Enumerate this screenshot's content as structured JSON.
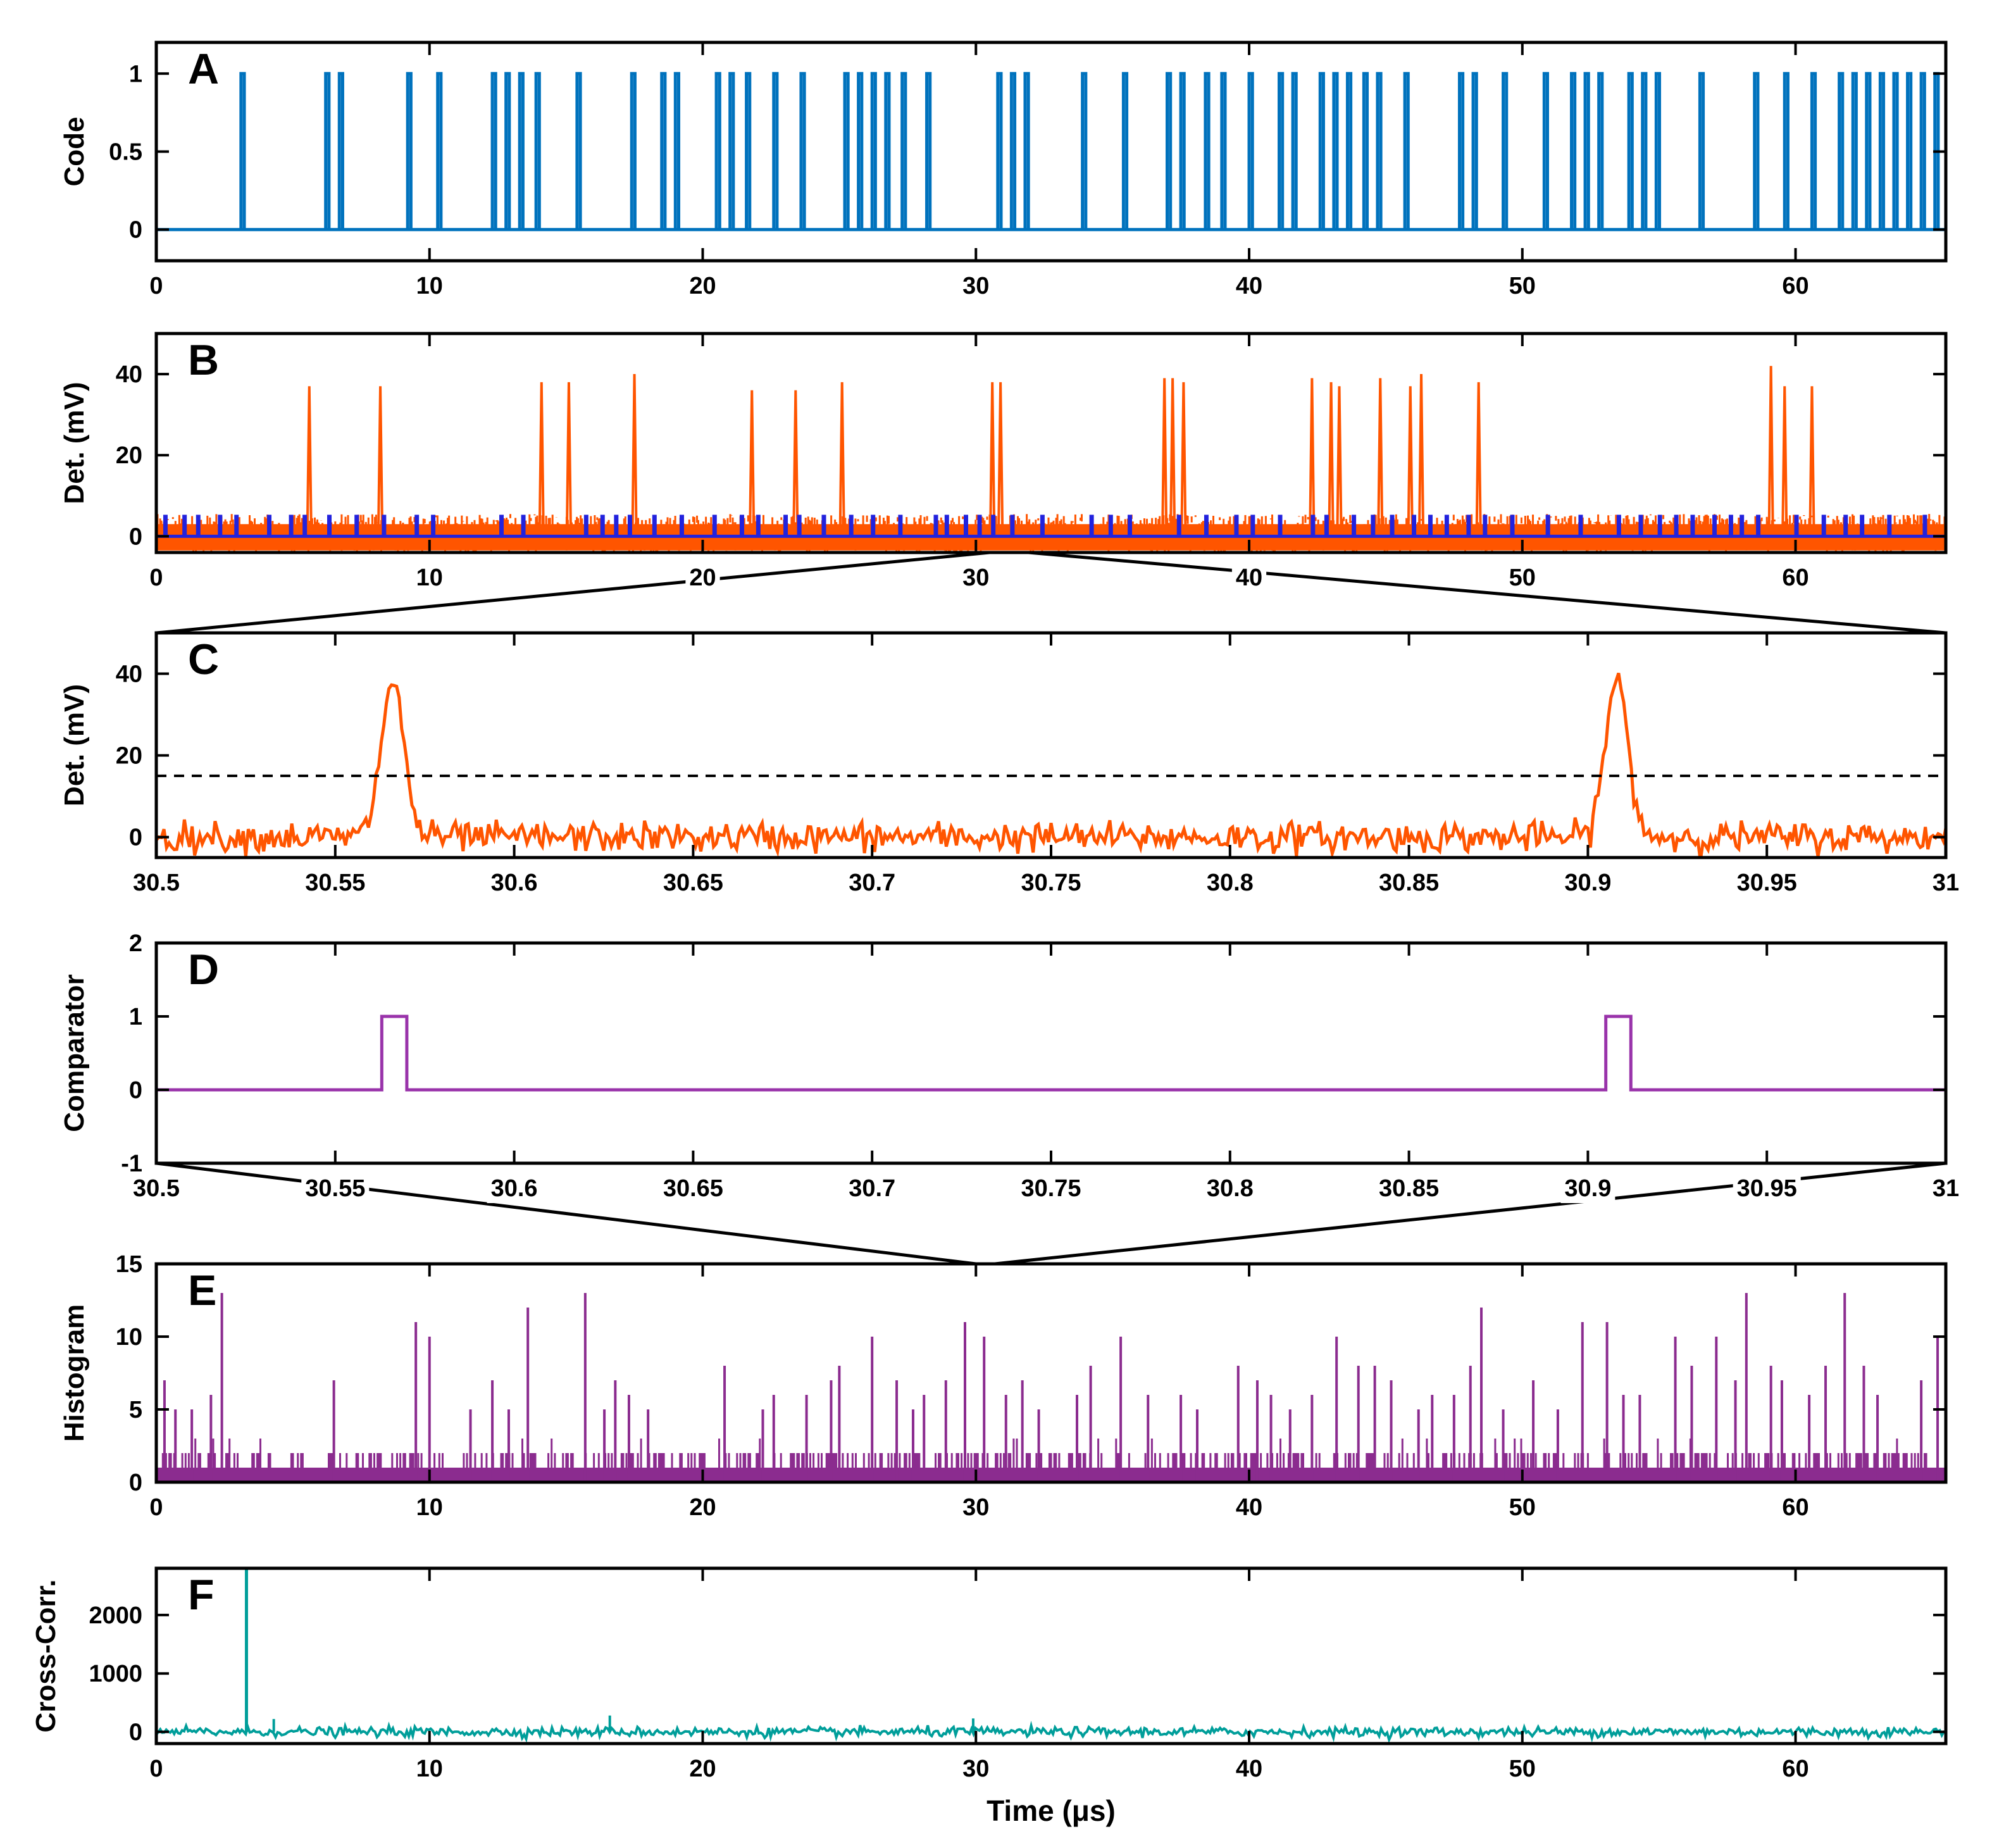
{
  "chart_data": [
    {
      "id": "A",
      "panel_label": "A",
      "type": "line",
      "ylabel": "Code",
      "xlabel": "",
      "xlim": [
        0,
        65.5
      ],
      "ylim": [
        -0.2,
        1.2
      ],
      "xticks": [
        0,
        10,
        20,
        30,
        40,
        50,
        60
      ],
      "xtick_labels": [
        "0",
        "10",
        "20",
        "30",
        "40",
        "50",
        "60"
      ],
      "yticks": [
        0,
        0.5,
        1
      ],
      "ytick_labels": [
        "0",
        "0.5",
        "1"
      ],
      "colors": {
        "code": "#0072BD"
      },
      "pulse_width_us": 0.12,
      "pulse_times_us": [
        3.1,
        6.2,
        6.7,
        9.2,
        10.3,
        12.3,
        12.8,
        13.3,
        13.9,
        15.4,
        17.4,
        18.5,
        19.0,
        20.5,
        21.0,
        21.6,
        22.6,
        23.6,
        25.2,
        25.7,
        26.2,
        26.7,
        27.3,
        28.2,
        30.8,
        31.3,
        31.8,
        33.9,
        35.4,
        37.0,
        37.5,
        38.4,
        39.0,
        40.0,
        41.1,
        41.6,
        42.6,
        43.1,
        43.6,
        44.2,
        44.7,
        45.7,
        47.7,
        48.2,
        49.3,
        50.8,
        51.8,
        52.3,
        52.8,
        53.9,
        54.4,
        54.9,
        56.5,
        58.5,
        59.6,
        60.6,
        61.6,
        62.1,
        62.6,
        63.1,
        63.6,
        64.1,
        64.6,
        65.1
      ],
      "legend": []
    },
    {
      "id": "B",
      "panel_label": "B",
      "type": "line",
      "ylabel": "Det. (mV)",
      "xlabel": "",
      "xlim": [
        0,
        65.5
      ],
      "ylim": [
        -4,
        50
      ],
      "xticks": [
        0,
        10,
        20,
        30,
        40,
        50,
        60
      ],
      "xtick_labels": [
        "0",
        "10",
        "20",
        "30",
        "40",
        "50",
        "60"
      ],
      "yticks": [
        0,
        20,
        40
      ],
      "ytick_labels": [
        "0",
        "20",
        "40"
      ],
      "colors": {
        "signal": "#FF5500",
        "reference": "#2222DD"
      },
      "noise_band_mV": [
        -4,
        5.5
      ],
      "photon_peaks": [
        {
          "t": 5.6,
          "mV": 37
        },
        {
          "t": 8.2,
          "mV": 37
        },
        {
          "t": 14.1,
          "mV": 38
        },
        {
          "t": 15.1,
          "mV": 38
        },
        {
          "t": 17.5,
          "mV": 40
        },
        {
          "t": 21.8,
          "mV": 36
        },
        {
          "t": 23.4,
          "mV": 36
        },
        {
          "t": 25.1,
          "mV": 38
        },
        {
          "t": 30.6,
          "mV": 38
        },
        {
          "t": 30.9,
          "mV": 38
        },
        {
          "t": 36.9,
          "mV": 39
        },
        {
          "t": 37.2,
          "mV": 39
        },
        {
          "t": 37.6,
          "mV": 38
        },
        {
          "t": 42.3,
          "mV": 39
        },
        {
          "t": 43.0,
          "mV": 38
        },
        {
          "t": 43.3,
          "mV": 37
        },
        {
          "t": 44.8,
          "mV": 39
        },
        {
          "t": 45.9,
          "mV": 37
        },
        {
          "t": 46.3,
          "mV": 40
        },
        {
          "t": 48.4,
          "mV": 38
        },
        {
          "t": 59.1,
          "mV": 42
        },
        {
          "t": 59.6,
          "mV": 37
        },
        {
          "t": 60.6,
          "mV": 37
        }
      ],
      "reference_pulse_height_mV": 5,
      "reference_pulse_times_us": [
        0.3,
        1.0,
        1.5,
        2.3,
        2.9,
        4.1,
        4.9,
        5.4,
        6.3,
        7.3,
        8.3,
        9.5,
        10.1,
        12.6,
        13.4,
        15.7,
        16.3,
        16.8,
        17.3,
        18.2,
        19.2,
        20.4,
        21.4,
        22.0,
        23.0,
        23.5,
        24.4,
        25.4,
        26.2,
        27.2,
        28.5,
        28.9,
        29.6,
        30.1,
        30.6,
        31.3,
        32.4,
        34.2,
        34.9,
        35.6,
        37.4,
        38.4,
        39.5,
        40.1,
        41.1,
        42.3,
        42.8,
        43.8,
        44.5,
        45.2,
        46.0,
        46.6,
        47.2,
        48.0,
        48.6,
        49.6,
        50.9,
        52.1,
        53.5,
        54.3,
        55.0,
        55.6,
        56.2,
        57.0,
        57.6,
        58.0,
        58.6,
        60.0,
        61.0,
        61.8,
        62.4,
        63.4,
        64.7
      ]
    },
    {
      "id": "C",
      "panel_label": "C",
      "type": "line",
      "ylabel": "Det. (mV)",
      "xlabel": "",
      "xlim": [
        30.5,
        31.0
      ],
      "ylim": [
        -5,
        50
      ],
      "xticks": [
        30.5,
        30.55,
        30.6,
        30.65,
        30.7,
        30.75,
        30.8,
        30.85,
        30.9,
        30.95,
        31.0
      ],
      "xtick_labels": [
        "30.5",
        "30.55",
        "30.6",
        "30.65",
        "30.7",
        "30.75",
        "30.8",
        "30.85",
        "30.9",
        "30.95",
        "31"
      ],
      "yticks": [
        0,
        20,
        40
      ],
      "ytick_labels": [
        "0",
        "20",
        "40"
      ],
      "colors": {
        "signal": "#FF5500",
        "threshold": "#000000"
      },
      "threshold_mV": 15,
      "peaks": [
        {
          "t": 30.566,
          "mV": 38
        },
        {
          "t": 30.908,
          "mV": 38
        }
      ],
      "noise_sigma_mV": 1.8
    },
    {
      "id": "D",
      "panel_label": "D",
      "type": "line",
      "ylabel": "Comparator",
      "xlabel": "",
      "xlim": [
        30.5,
        31.0
      ],
      "ylim": [
        -1,
        2
      ],
      "xticks": [
        30.5,
        30.55,
        30.6,
        30.65,
        30.7,
        30.75,
        30.8,
        30.85,
        30.9,
        30.95,
        31.0
      ],
      "xtick_labels": [
        "30.5",
        "30.55",
        "30.6",
        "30.65",
        "30.7",
        "30.75",
        "30.8",
        "30.85",
        "30.9",
        "30.95",
        "31"
      ],
      "yticks": [
        -1,
        0,
        1,
        2
      ],
      "ytick_labels": [
        "-1",
        "0",
        "1",
        "2"
      ],
      "colors": {
        "comparator": "#9933AA"
      },
      "pulses": [
        {
          "start": 30.563,
          "end": 30.57
        },
        {
          "start": 30.905,
          "end": 30.912
        }
      ]
    },
    {
      "id": "E",
      "panel_label": "E",
      "type": "bar",
      "ylabel": "Histogram",
      "xlabel": "",
      "xlim": [
        0,
        65.5
      ],
      "ylim": [
        0,
        15
      ],
      "xticks": [
        0,
        10,
        20,
        30,
        40,
        50,
        60
      ],
      "xtick_labels": [
        "0",
        "10",
        "20",
        "30",
        "40",
        "50",
        "60"
      ],
      "yticks": [
        0,
        5,
        10,
        15
      ],
      "ytick_labels": [
        "0",
        "5",
        "10",
        "15"
      ],
      "colors": {
        "hist": "#8B2C8F"
      },
      "baseline_counts_max": 2,
      "tall_bins": [
        {
          "t": 0.3,
          "count": 7
        },
        {
          "t": 0.7,
          "count": 5
        },
        {
          "t": 1.3,
          "count": 5
        },
        {
          "t": 2.0,
          "count": 6
        },
        {
          "t": 2.4,
          "count": 13
        },
        {
          "t": 6.5,
          "count": 7
        },
        {
          "t": 9.5,
          "count": 11
        },
        {
          "t": 10.0,
          "count": 10
        },
        {
          "t": 11.5,
          "count": 5
        },
        {
          "t": 12.3,
          "count": 7
        },
        {
          "t": 12.9,
          "count": 5
        },
        {
          "t": 13.6,
          "count": 12
        },
        {
          "t": 15.7,
          "count": 13
        },
        {
          "t": 16.4,
          "count": 5
        },
        {
          "t": 16.8,
          "count": 7
        },
        {
          "t": 17.3,
          "count": 6
        },
        {
          "t": 18.0,
          "count": 5
        },
        {
          "t": 20.8,
          "count": 8
        },
        {
          "t": 22.2,
          "count": 5
        },
        {
          "t": 22.6,
          "count": 6
        },
        {
          "t": 23.8,
          "count": 6
        },
        {
          "t": 24.7,
          "count": 7
        },
        {
          "t": 25.0,
          "count": 8
        },
        {
          "t": 26.2,
          "count": 10
        },
        {
          "t": 27.1,
          "count": 7
        },
        {
          "t": 27.7,
          "count": 5
        },
        {
          "t": 28.1,
          "count": 6
        },
        {
          "t": 28.9,
          "count": 7
        },
        {
          "t": 29.6,
          "count": 11
        },
        {
          "t": 30.3,
          "count": 10
        },
        {
          "t": 31.1,
          "count": 6
        },
        {
          "t": 31.7,
          "count": 7
        },
        {
          "t": 32.3,
          "count": 5
        },
        {
          "t": 33.7,
          "count": 6
        },
        {
          "t": 34.2,
          "count": 8
        },
        {
          "t": 35.3,
          "count": 10
        },
        {
          "t": 36.3,
          "count": 6
        },
        {
          "t": 37.5,
          "count": 6
        },
        {
          "t": 38.1,
          "count": 5
        },
        {
          "t": 39.6,
          "count": 8
        },
        {
          "t": 40.3,
          "count": 7
        },
        {
          "t": 40.8,
          "count": 6
        },
        {
          "t": 41.5,
          "count": 5
        },
        {
          "t": 42.3,
          "count": 6
        },
        {
          "t": 43.2,
          "count": 10
        },
        {
          "t": 44.0,
          "count": 8
        },
        {
          "t": 44.6,
          "count": 8
        },
        {
          "t": 45.2,
          "count": 7
        },
        {
          "t": 46.2,
          "count": 5
        },
        {
          "t": 46.7,
          "count": 6
        },
        {
          "t": 47.5,
          "count": 6
        },
        {
          "t": 48.1,
          "count": 8
        },
        {
          "t": 48.5,
          "count": 12
        },
        {
          "t": 49.3,
          "count": 5
        },
        {
          "t": 50.4,
          "count": 7
        },
        {
          "t": 51.3,
          "count": 5
        },
        {
          "t": 52.2,
          "count": 11
        },
        {
          "t": 53.1,
          "count": 11
        },
        {
          "t": 53.7,
          "count": 6
        },
        {
          "t": 54.3,
          "count": 6
        },
        {
          "t": 55.6,
          "count": 10
        },
        {
          "t": 56.2,
          "count": 8
        },
        {
          "t": 57.1,
          "count": 10
        },
        {
          "t": 57.8,
          "count": 7
        },
        {
          "t": 58.2,
          "count": 13
        },
        {
          "t": 59.1,
          "count": 8
        },
        {
          "t": 59.5,
          "count": 7
        },
        {
          "t": 60.5,
          "count": 6
        },
        {
          "t": 61.1,
          "count": 8
        },
        {
          "t": 61.8,
          "count": 13
        },
        {
          "t": 62.5,
          "count": 8
        },
        {
          "t": 63.0,
          "count": 6
        },
        {
          "t": 64.6,
          "count": 7
        },
        {
          "t": 65.2,
          "count": 10
        }
      ]
    },
    {
      "id": "F",
      "panel_label": "F",
      "type": "line",
      "ylabel": "Cross-Corr.",
      "xlabel": "Time (μs)",
      "xlim": [
        0,
        65.5
      ],
      "ylim": [
        -200,
        2800
      ],
      "xticks": [
        0,
        10,
        20,
        30,
        40,
        50,
        60
      ],
      "xtick_labels": [
        "0",
        "10",
        "20",
        "30",
        "40",
        "50",
        "60"
      ],
      "yticks": [
        0,
        1000,
        2000
      ],
      "ytick_labels": [
        "0",
        "1000",
        "2000"
      ],
      "colors": {
        "xcorr": "#009E9A"
      },
      "peak": {
        "t": 3.3,
        "value": 2800
      },
      "small_peaks": [
        {
          "t": 4.3,
          "value": 220
        },
        {
          "t": 16.6,
          "value": 280
        },
        {
          "t": 29.9,
          "value": 230
        }
      ],
      "noise_sigma": 40
    }
  ]
}
